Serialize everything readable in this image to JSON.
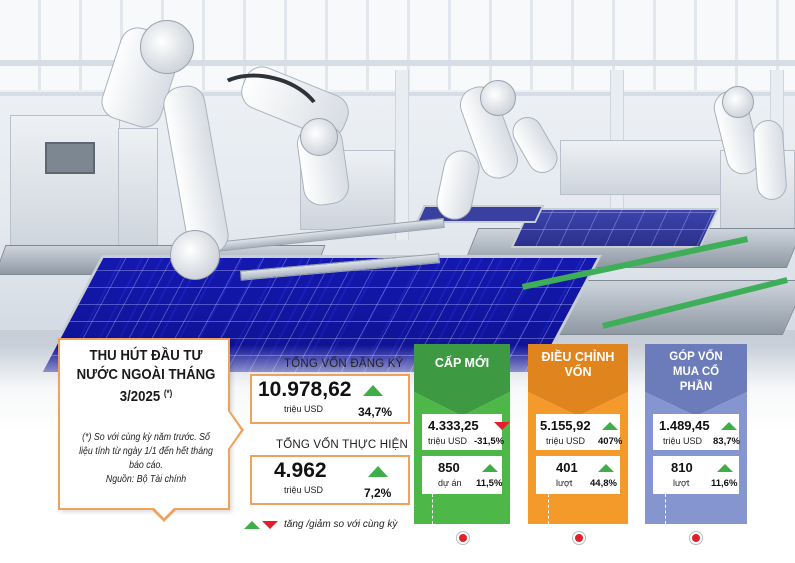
{
  "infographic": {
    "title": "THU HÚT ĐẦU TƯ NƯỚC NGOÀI THÁNG 3/2025",
    "title_marker": "(*)",
    "note": "(*) So với cùng kỳ năm trước. Số liệu tính từ ngày 1/1 đến hết tháng báo cáo.",
    "source": "Nguồn: Bộ Tài chính"
  },
  "registered": {
    "label": "TỔNG VỐN ĐĂNG KÝ",
    "value": "10.978,62",
    "unit": "triệu USD",
    "change": "34,7%",
    "trend": "up"
  },
  "disbursed": {
    "label": "TỔNG VỐN THỰC HIỆN",
    "value": "4.962",
    "unit": "triệu USD",
    "change": "7,2%",
    "trend": "up"
  },
  "legend": {
    "text": "tăng /giảm so với cùng kỳ",
    "up_color": "#3fae49",
    "down_color": "#e2202b"
  },
  "categories": [
    {
      "title": "CẤP MỚI",
      "color": "#4db848",
      "capital_value": "4.333,25",
      "capital_unit": "triệu USD",
      "capital_change": "-31,5%",
      "capital_trend": "down",
      "count_value": "850",
      "count_unit": "dự án",
      "count_change": "11,5%",
      "count_trend": "up"
    },
    {
      "title": "ĐIỀU CHỈNH VỐN",
      "color": "#f39a2b",
      "capital_value": "5.155,92",
      "capital_unit": "triệu USD",
      "capital_change": "407%",
      "capital_trend": "up",
      "count_value": "401",
      "count_unit": "lượt",
      "count_change": "44,8%",
      "count_trend": "up"
    },
    {
      "title": "GÓP VỐN MUA CỔ PHẦN",
      "color": "#7f8fc9",
      "capital_value": "1.489,45",
      "capital_unit": "triệu USD",
      "capital_change": "83,7%",
      "capital_trend": "up",
      "count_value": "810",
      "count_unit": "lượt",
      "count_change": "11,6%",
      "count_trend": "up"
    }
  ]
}
